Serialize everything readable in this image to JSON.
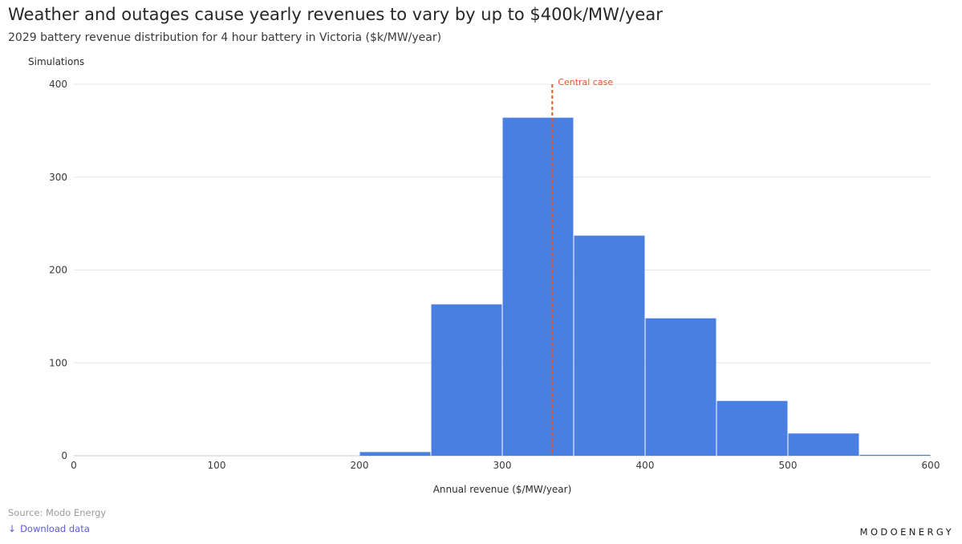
{
  "header": {
    "title": "Weather and outages cause yearly revenues to vary by up to $400k/MW/year",
    "subtitle": "2029 battery revenue distribution for 4 hour battery in Victoria ($k/MW/year)"
  },
  "chart_data": {
    "type": "bar",
    "ylabel": "Simulations",
    "xlabel": "Annual revenue ($/MW/year)",
    "xlim": [
      0,
      600
    ],
    "ylim": [
      0,
      400
    ],
    "x_ticks": [
      0,
      100,
      200,
      300,
      400,
      500,
      600
    ],
    "y_ticks": [
      0,
      100,
      200,
      300,
      400
    ],
    "grid": true,
    "bins": [
      {
        "start": 200,
        "end": 250,
        "count": 4
      },
      {
        "start": 250,
        "end": 300,
        "count": 163
      },
      {
        "start": 300,
        "end": 350,
        "count": 364
      },
      {
        "start": 350,
        "end": 400,
        "count": 237
      },
      {
        "start": 400,
        "end": 450,
        "count": 148
      },
      {
        "start": 450,
        "end": 500,
        "count": 59
      },
      {
        "start": 500,
        "end": 550,
        "count": 24
      },
      {
        "start": 550,
        "end": 600,
        "count": 1
      }
    ],
    "bar_color": "#4a7fe2",
    "reference_line": {
      "x": 335,
      "label": "Central case",
      "color": "#e0572a"
    }
  },
  "footer": {
    "source": "Source: Modo Energy",
    "download_label": "Download data",
    "brand": "MODOENERGY"
  }
}
